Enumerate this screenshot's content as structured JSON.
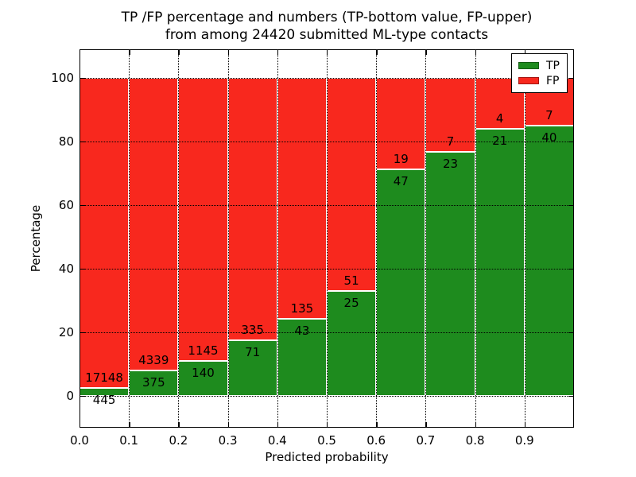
{
  "figure": {
    "title_line1": "TP /FP percentage and numbers (TP-bottom value, FP-upper)",
    "title_line2": "from among 24420 submitted ML-type contacts",
    "xlabel": "Predicted probability",
    "ylabel": "Percentage",
    "background": "#ffffff"
  },
  "legend": {
    "items": [
      {
        "label": "TP",
        "color": "#1e8b1e"
      },
      {
        "label": "FP",
        "color": "#f8281e"
      }
    ]
  },
  "chart_data": {
    "type": "bar",
    "stacked": true,
    "subtype": "percentage-stacked-with-count-labels",
    "title": "TP /FP percentage and numbers (TP-bottom value, FP-upper) from among 24420 submitted ML-type contacts",
    "xlabel": "Predicted probability",
    "ylabel": "Percentage",
    "total_contacts": 24420,
    "bins": [
      "0.0-0.1",
      "0.1-0.2",
      "0.2-0.3",
      "0.3-0.4",
      "0.4-0.5",
      "0.5-0.6",
      "0.6-0.7",
      "0.7-0.8",
      "0.8-0.9",
      "0.9-1.0"
    ],
    "series": [
      {
        "name": "TP",
        "color": "#1e8b1e",
        "counts": [
          445,
          375,
          140,
          71,
          43,
          25,
          47,
          23,
          21,
          40
        ]
      },
      {
        "name": "FP",
        "color": "#f8281e",
        "counts": [
          17148,
          4339,
          1145,
          335,
          135,
          51,
          19,
          7,
          4,
          7
        ]
      }
    ],
    "tp_percent": [
      2.53,
      7.95,
      10.89,
      17.49,
      24.16,
      32.89,
      71.21,
      76.67,
      84.0,
      85.11
    ],
    "xlim": [
      0.0,
      1.0
    ],
    "ylim": [
      -10,
      109
    ],
    "xticks": [
      "0.0",
      "0.1",
      "0.2",
      "0.3",
      "0.4",
      "0.5",
      "0.6",
      "0.7",
      "0.8",
      "0.9"
    ],
    "yticks": [
      0,
      20,
      40,
      60,
      80,
      100
    ],
    "grid": "dotted-black-above-bars",
    "bar_edge_color": "#ffffff",
    "legend_position": "upper-right"
  }
}
